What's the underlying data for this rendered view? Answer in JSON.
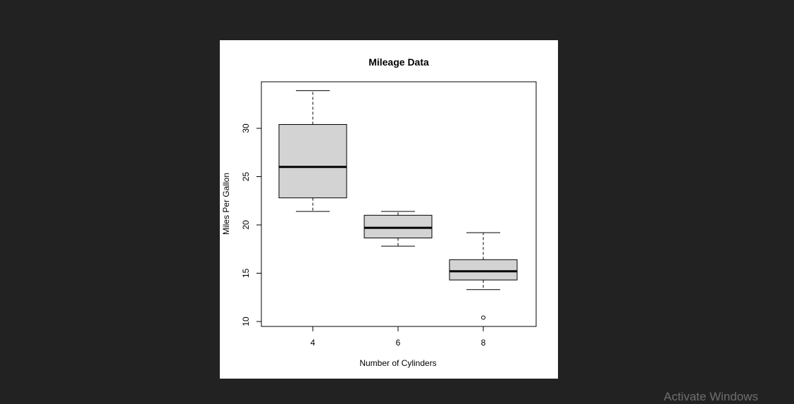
{
  "chart_data": {
    "type": "box",
    "title": "Mileage Data",
    "xlabel": "Number of Cylinders",
    "ylabel": "Miles Per Gallon",
    "categories": [
      "4",
      "6",
      "8"
    ],
    "boxes": [
      {
        "category": "4",
        "whisker_low": 21.4,
        "q1": 22.8,
        "median": 26.0,
        "q3": 30.4,
        "whisker_high": 33.9,
        "outliers": []
      },
      {
        "category": "6",
        "whisker_low": 17.8,
        "q1": 18.65,
        "median": 19.7,
        "q3": 21.0,
        "whisker_high": 21.4,
        "outliers": []
      },
      {
        "category": "8",
        "whisker_low": 13.3,
        "q1": 14.3,
        "median": 15.2,
        "q3": 16.4,
        "whisker_high": 19.2,
        "outliers": [
          10.4
        ]
      }
    ],
    "yticks": [
      10,
      15,
      20,
      25,
      30
    ],
    "ylim": [
      9.5,
      35
    ],
    "box_fill": "#d3d3d3",
    "grid": false
  },
  "watermark": {
    "text": "Activate Windows"
  }
}
